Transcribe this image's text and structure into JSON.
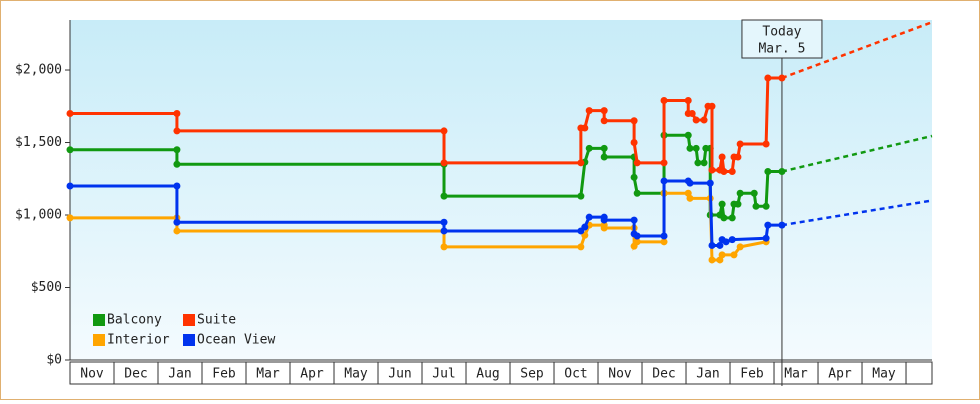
{
  "chart_data": {
    "type": "line",
    "categories": [
      "Nov",
      "Dec",
      "Jan",
      "Feb",
      "Mar",
      "Apr",
      "May",
      "Jun",
      "Jul",
      "Aug",
      "Sep",
      "Oct",
      "Nov",
      "Dec",
      "Jan",
      "Feb",
      "Mar",
      "Apr",
      "May",
      null
    ],
    "xlim": [
      0,
      19.59
    ],
    "ylim": [
      0,
      2345
    ],
    "yticks": [
      {
        "value": 0,
        "label": "$0"
      },
      {
        "value": 500,
        "label": "$500"
      },
      {
        "value": 1000,
        "label": "$1,000"
      },
      {
        "value": 1500,
        "label": "$1,500"
      },
      {
        "value": 2000,
        "label": "$2,000"
      }
    ],
    "legend": "lower left",
    "series": [
      {
        "name": "Balcony",
        "color": "#119911",
        "x": [
          0,
          2.43,
          2.43,
          8.5,
          8.5,
          11.61,
          11.7,
          11.8,
          12.14,
          12.14,
          12.82,
          12.82,
          12.89,
          13.5,
          13.5,
          14.05,
          14.09,
          14.23,
          14.27,
          14.41,
          14.45,
          14.55,
          14.55,
          14.77,
          14.82,
          14.86,
          15.05,
          15.09,
          15.18,
          15.23,
          15.55,
          15.59,
          15.82,
          15.86,
          16.18
        ],
        "values": [
          1450,
          1450,
          1350,
          1350,
          1130,
          1130,
          1365,
          1460,
          1460,
          1400,
          1400,
          1260,
          1150,
          1150,
          1550,
          1550,
          1460,
          1460,
          1360,
          1360,
          1460,
          1460,
          1000,
          1000,
          1075,
          980,
          980,
          1075,
          1075,
          1150,
          1150,
          1060,
          1060,
          1300,
          1300
        ],
        "forecast": {
          "x": [
            16.18,
            19.59
          ],
          "values": [
            1300,
            1545
          ]
        }
      },
      {
        "name": "Suite",
        "color": "#ff3300",
        "x": [
          0,
          2.43,
          2.43,
          8.5,
          8.5,
          11.61,
          11.61,
          11.7,
          11.8,
          12.14,
          12.14,
          12.82,
          12.82,
          12.89,
          13.5,
          13.5,
          14.05,
          14.05,
          14.14,
          14.23,
          14.41,
          14.5,
          14.59,
          14.59,
          14.77,
          14.82,
          14.86,
          15.05,
          15.09,
          15.18,
          15.23,
          15.82,
          15.86,
          16.18
        ],
        "values": [
          1700,
          1700,
          1580,
          1580,
          1360,
          1360,
          1600,
          1600,
          1720,
          1720,
          1650,
          1650,
          1500,
          1360,
          1360,
          1790,
          1790,
          1700,
          1700,
          1655,
          1655,
          1750,
          1750,
          1310,
          1310,
          1400,
          1300,
          1300,
          1400,
          1400,
          1490,
          1490,
          1945,
          1945
        ],
        "forecast": {
          "x": [
            16.18,
            19.59
          ],
          "values": [
            1945,
            2330
          ]
        }
      },
      {
        "name": "Interior",
        "color": "#ffa500",
        "x": [
          0,
          2.43,
          2.43,
          8.5,
          8.5,
          11.61,
          11.7,
          11.8,
          12.14,
          12.14,
          12.82,
          12.82,
          12.89,
          13.5,
          13.5,
          14.05,
          14.09,
          14.55,
          14.59,
          14.77,
          14.82,
          15.09,
          15.23,
          15.82
        ],
        "values": [
          980,
          980,
          890,
          890,
          780,
          780,
          860,
          930,
          930,
          910,
          910,
          785,
          815,
          815,
          1150,
          1150,
          1115,
          1115,
          690,
          690,
          725,
          725,
          780,
          815
        ]
      },
      {
        "name": "Ocean View",
        "color": "#0033ee",
        "x": [
          0,
          2.43,
          2.43,
          8.5,
          8.5,
          11.61,
          11.7,
          11.8,
          12.14,
          12.14,
          12.82,
          12.82,
          12.89,
          13.5,
          13.5,
          14.05,
          14.09,
          14.55,
          14.59,
          14.77,
          14.82,
          14.91,
          15.05,
          15.82,
          15.86,
          16.18
        ],
        "values": [
          1200,
          1200,
          950,
          950,
          890,
          890,
          917,
          985,
          985,
          965,
          965,
          870,
          855,
          855,
          1235,
          1235,
          1220,
          1220,
          790,
          790,
          830,
          815,
          830,
          840,
          930,
          930
        ],
        "forecast": {
          "x": [
            16.18,
            19.59
          ],
          "values": [
            930,
            1100
          ]
        }
      }
    ],
    "annotation": {
      "x": 16.18,
      "lines": [
        "Today",
        "Mar. 5"
      ]
    }
  }
}
